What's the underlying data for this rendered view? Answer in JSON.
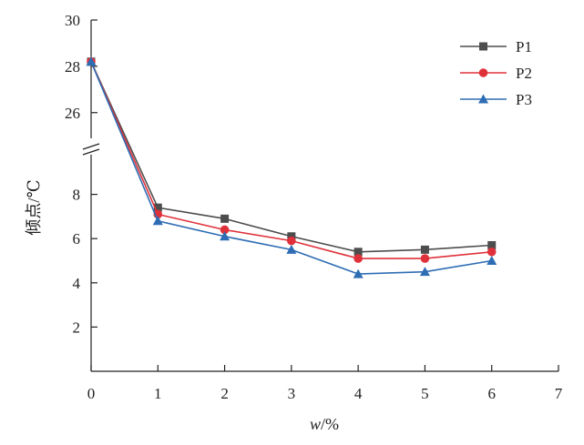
{
  "chart_data": {
    "type": "line",
    "xlabel": "w/%",
    "ylabel": "倾点/℃",
    "xlim": [
      0,
      7
    ],
    "x_ticks": [
      0,
      1,
      2,
      3,
      4,
      5,
      6,
      7
    ],
    "y_ticks_lower": [
      2,
      4,
      6,
      8
    ],
    "y_ticks_upper": [
      26,
      28,
      30
    ],
    "y_scale": "broken axis: lower segment 0–10, upper segment 24.3–30",
    "grid": false,
    "legend_position": "top-right",
    "x": [
      0,
      1,
      2,
      3,
      4,
      5,
      6
    ],
    "series": [
      {
        "name": "P1",
        "color": "#4d4d4d",
        "marker": "square",
        "values": [
          28.2,
          7.4,
          6.9,
          6.1,
          5.4,
          5.5,
          5.7
        ]
      },
      {
        "name": "P2",
        "color": "#e0313a",
        "marker": "circle",
        "values": [
          28.2,
          7.1,
          6.4,
          5.9,
          5.1,
          5.1,
          5.4
        ]
      },
      {
        "name": "P3",
        "color": "#2e6db4",
        "marker": "triangle",
        "values": [
          28.2,
          6.8,
          6.1,
          5.5,
          4.4,
          4.5,
          5.0
        ]
      }
    ]
  }
}
